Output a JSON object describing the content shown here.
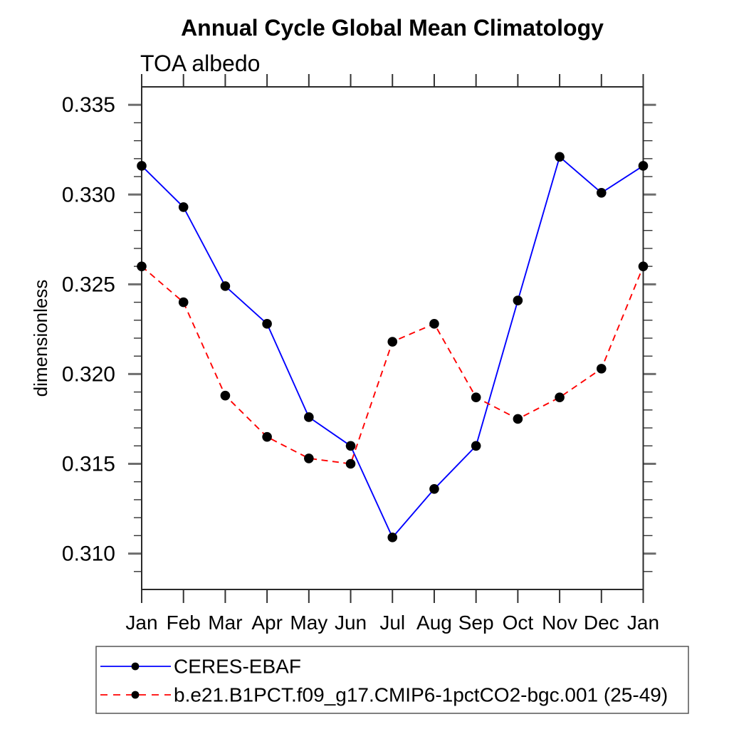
{
  "chart_data": {
    "type": "line",
    "title": "Annual Cycle Global Mean Climatology",
    "subtitle": "TOA albedo",
    "xlabel": "",
    "ylabel": "dimensionless",
    "x_tick_labels": [
      "Jan",
      "Feb",
      "Mar",
      "Apr",
      "May",
      "Jun",
      "Jul",
      "Aug",
      "Sep",
      "Oct",
      "Nov",
      "Dec",
      "Jan"
    ],
    "y_ticks": [
      0.31,
      0.315,
      0.32,
      0.325,
      0.33,
      0.335
    ],
    "y_tick_labels": [
      "0.310",
      "0.315",
      "0.320",
      "0.325",
      "0.330",
      "0.335"
    ],
    "ylim": [
      0.308,
      0.336
    ],
    "y_minor_step": 0.001,
    "grid": false,
    "legend_position": "bottom-left-box",
    "marker": "filled-circle",
    "marker_color": "#000000",
    "series": [
      {
        "name": "CERES-EBAF",
        "color": "#0000ff",
        "line_style": "solid",
        "values": [
          0.3316,
          0.3293,
          0.3249,
          0.3228,
          0.3176,
          0.316,
          0.3109,
          0.3136,
          0.316,
          0.3241,
          0.3321,
          0.3301,
          0.3316
        ]
      },
      {
        "name": "b.e21.B1PCT.f09_g17.CMIP6-1pctCO2-bgc.001 (25-49)",
        "color": "#ff0000",
        "line_style": "dashed",
        "values": [
          0.326,
          0.324,
          0.3188,
          0.3165,
          0.3153,
          0.315,
          0.3218,
          0.3228,
          0.3187,
          0.3175,
          0.3187,
          0.3203,
          0.326
        ]
      }
    ]
  }
}
